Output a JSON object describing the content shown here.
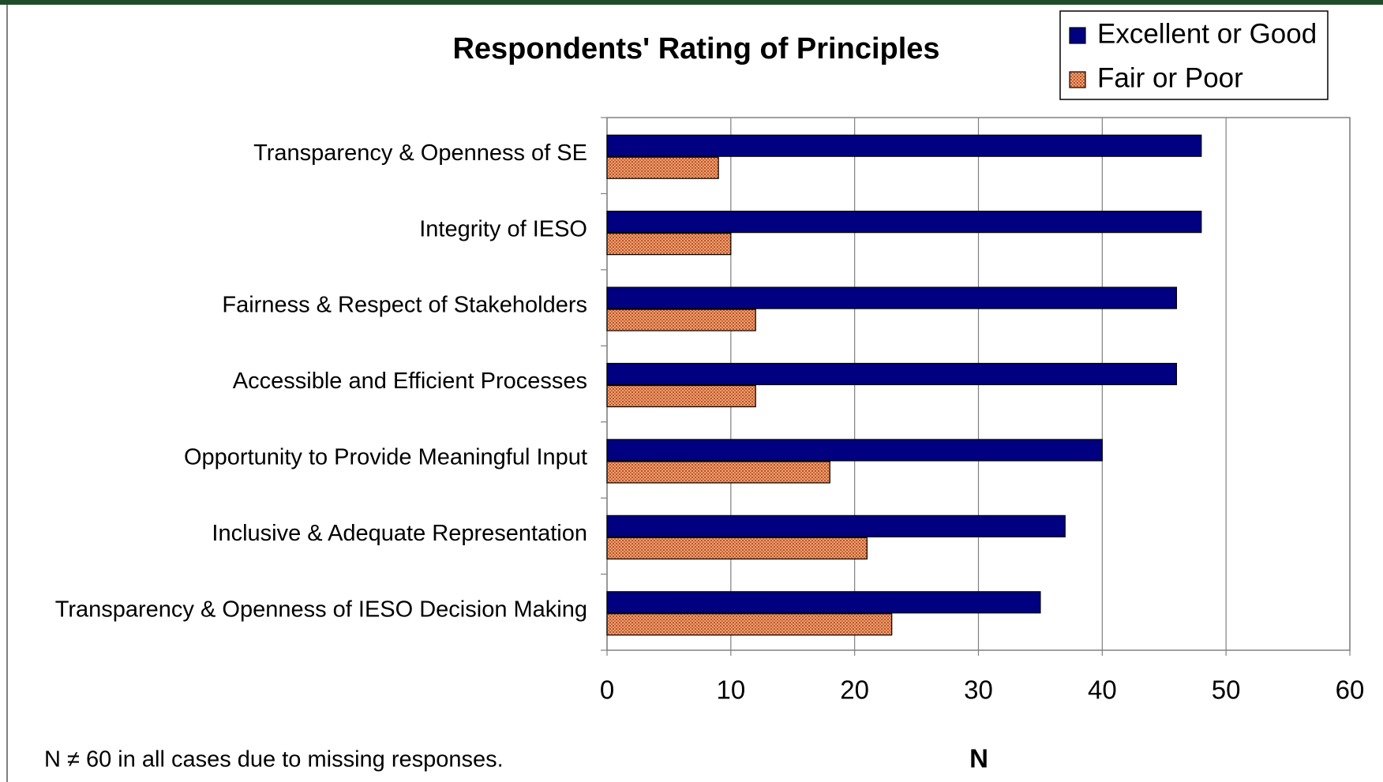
{
  "chart_data": {
    "type": "bar",
    "orientation": "horizontal",
    "title": "Respondents' Rating of Principles",
    "categories": [
      "Transparency & Openness of SE",
      "Integrity of IESO",
      "Fairness & Respect of Stakeholders",
      "Accessible and Efficient Processes",
      "Opportunity to Provide Meaningful Input",
      "Inclusive & Adequate Representation",
      "Transparency & Openness of IESO Decision Making"
    ],
    "series": [
      {
        "name": "Excellent or Good",
        "color": "#000080",
        "values": [
          48,
          48,
          46,
          46,
          40,
          37,
          35
        ]
      },
      {
        "name": "Fair or Poor",
        "color": "#d9804f",
        "values": [
          9,
          10,
          12,
          12,
          18,
          21,
          23
        ]
      }
    ],
    "xlim": [
      0,
      60
    ],
    "xticks": [
      0,
      10,
      20,
      30,
      40,
      50,
      60
    ],
    "xlabel": "N",
    "note": "N ≠ 60 in all cases due to missing responses.",
    "grid": true,
    "legend": "top-right"
  }
}
